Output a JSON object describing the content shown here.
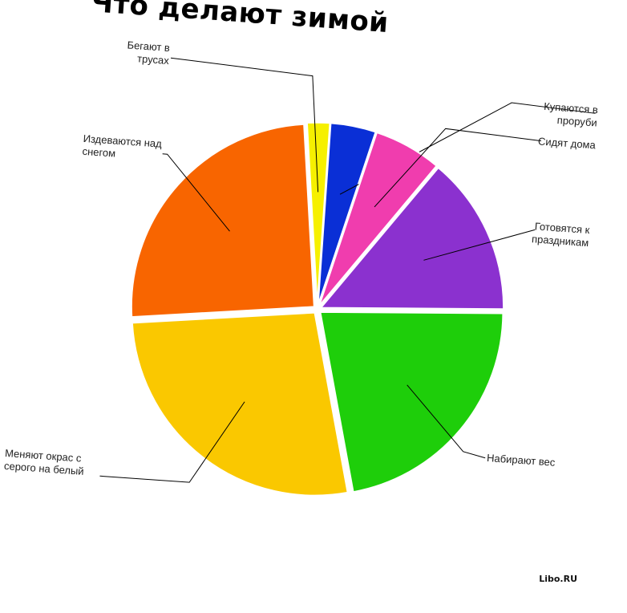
{
  "chart_data": {
    "type": "pie",
    "title": "Что делают зимой",
    "slices": [
      {
        "label": "Купаются в проруби",
        "value": 4,
        "color": "#0a2fd6"
      },
      {
        "label": "Сидят дома",
        "value": 6,
        "color": "#f03dae"
      },
      {
        "label": "Готовятся к праздникам",
        "value": 14,
        "color": "#8b31cf"
      },
      {
        "label": "Набирают вес",
        "value": 22,
        "color": "#1ece0a"
      },
      {
        "label": "Меняют окрас с серого на белый",
        "value": 27,
        "color": "#fac800"
      },
      {
        "label": "Издеваются над снегом",
        "value": 25,
        "color": "#f86500"
      },
      {
        "label": "Бегают в трусах",
        "value": 2,
        "color": "#f6f000"
      }
    ]
  },
  "watermark": "Libo.RU"
}
